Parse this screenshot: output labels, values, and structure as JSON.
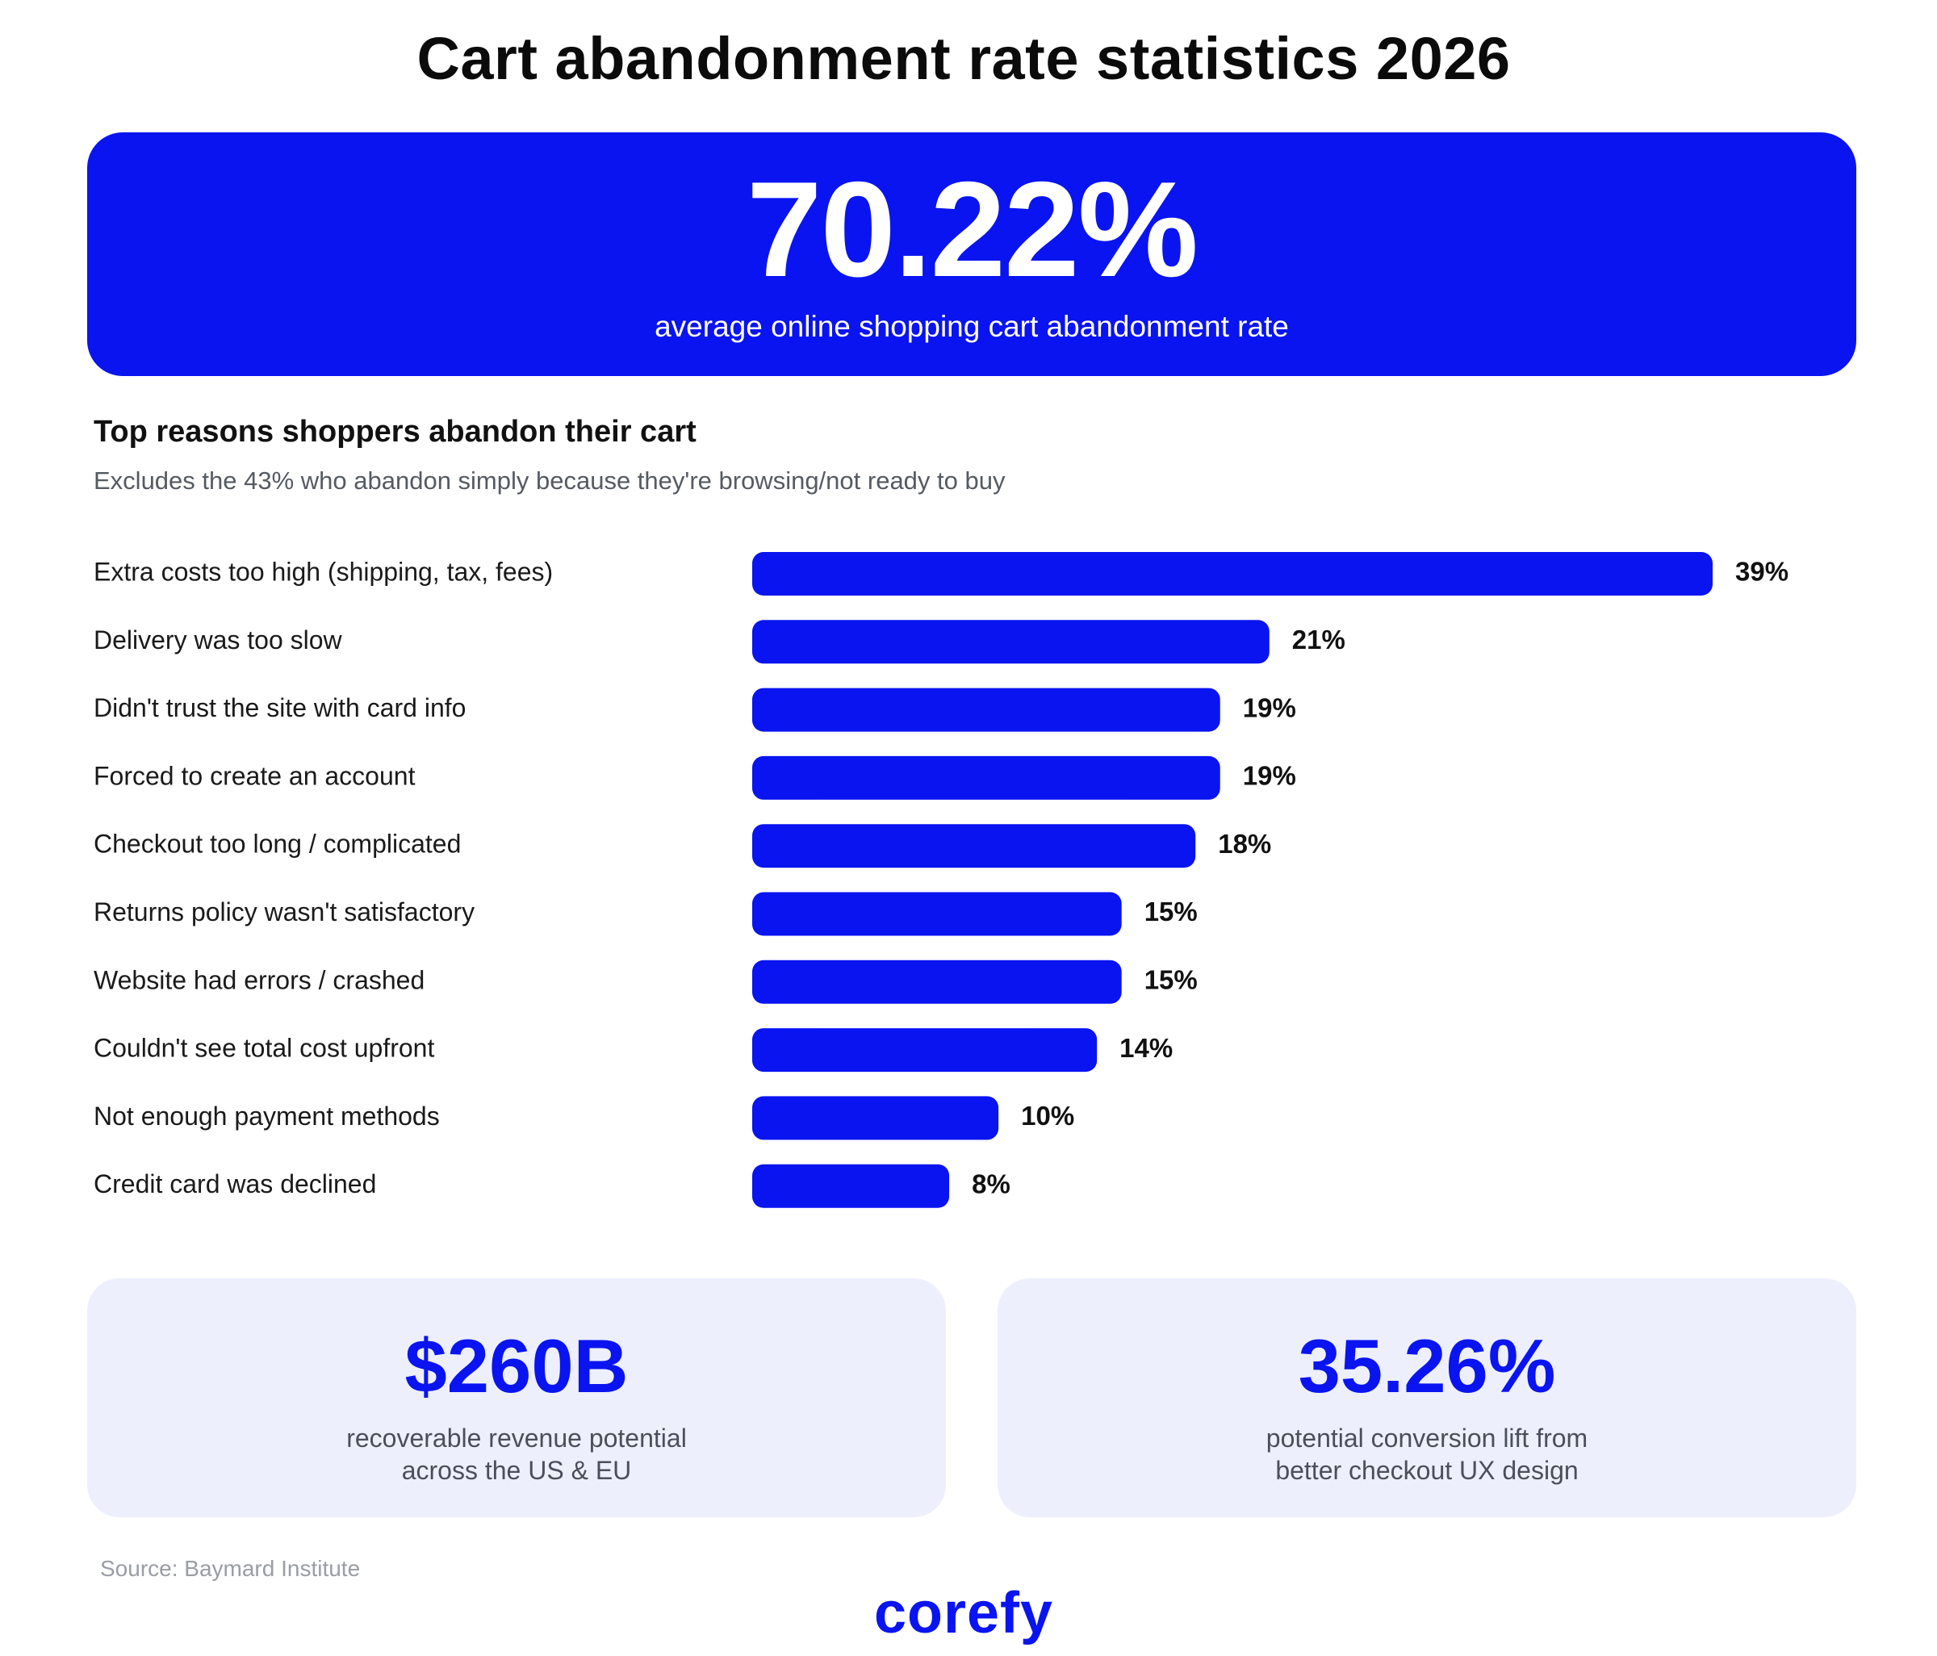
{
  "title": "Cart abandonment rate statistics 2026",
  "hero": {
    "value": "70.22%",
    "caption": "average online shopping cart abandonment rate"
  },
  "section": {
    "title": "Top reasons shoppers abandon their cart",
    "subtitle": "Excludes the 43% who abandon simply because they're browsing/not ready to buy"
  },
  "chart_data": {
    "type": "bar",
    "orientation": "horizontal",
    "title": "Top reasons shoppers abandon their cart",
    "subtitle": "Excludes the 43% who abandon simply because they're browsing/not ready to buy",
    "categories": [
      "Extra costs too high (shipping, tax, fees)",
      "Delivery was too slow",
      "Didn't trust the site with card info",
      "Forced to create an account",
      "Checkout too long / complicated",
      "Returns policy wasn't satisfactory",
      "Website had errors / crashed",
      "Couldn't see total cost upfront",
      "Not enough payment methods",
      "Credit card was declined"
    ],
    "values": [
      39,
      21,
      19,
      19,
      18,
      15,
      15,
      14,
      10,
      8
    ],
    "value_labels": [
      "39%",
      "21%",
      "19%",
      "19%",
      "18%",
      "15%",
      "15%",
      "14%",
      "10%",
      "8%"
    ],
    "unit": "%",
    "xlim": [
      0,
      39
    ],
    "grid": false,
    "bar_color": "#0A14F0"
  },
  "cards": [
    {
      "value": "$260B",
      "caption_lines": [
        "recoverable revenue potential",
        "across the US & EU"
      ]
    },
    {
      "value": "35.26%",
      "caption_lines": [
        "potential conversion lift from",
        "better checkout UX design"
      ]
    }
  ],
  "source": "Source: Baymard Institute",
  "logo": "corefy",
  "colors": {
    "accent": "#0A14F0",
    "card_background": "#EDEFFD"
  }
}
